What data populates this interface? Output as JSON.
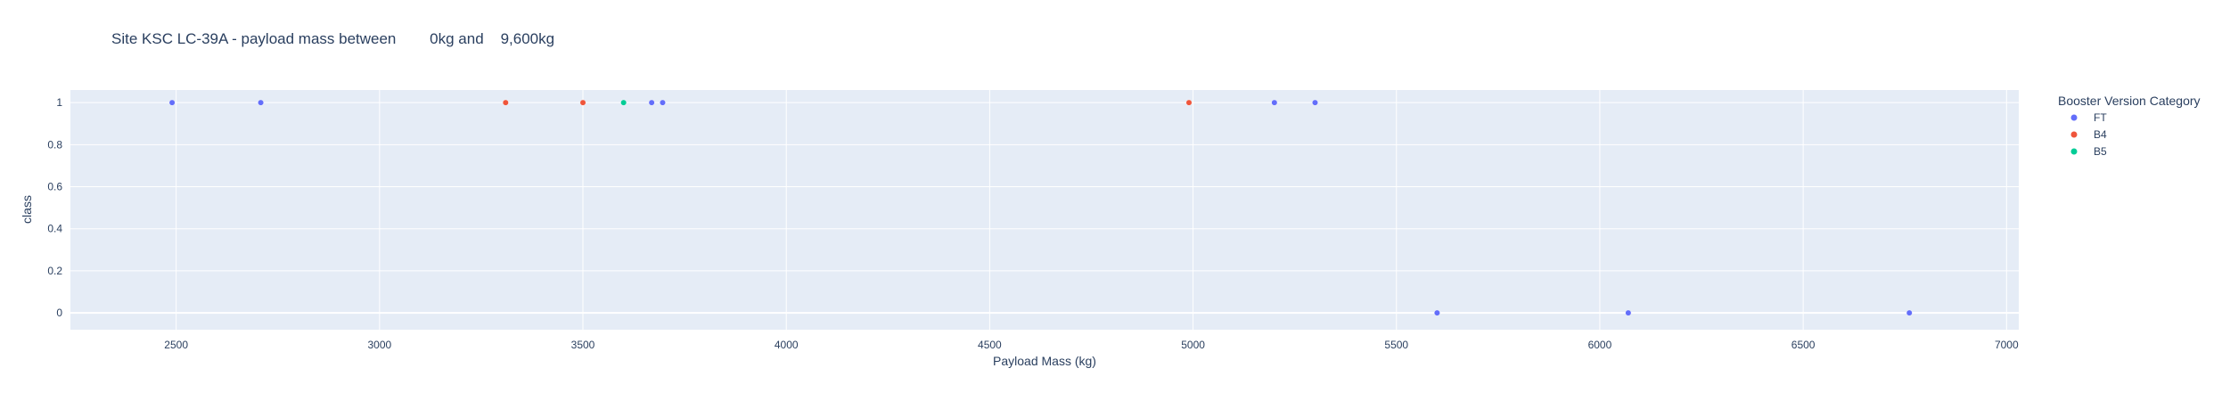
{
  "chart_data": {
    "type": "scatter",
    "title": "Site KSC LC-39A - payload mass between        0kg and    9,600kg",
    "xlabel": "Payload Mass (kg)",
    "ylabel": "class",
    "xlim": [
      2240,
      7030
    ],
    "ylim": [
      -0.08,
      1.06
    ],
    "x_ticks": [
      2500,
      3000,
      3500,
      4000,
      4500,
      5000,
      5500,
      6000,
      6500,
      7000
    ],
    "x_tick_labels": [
      "2500",
      "3000",
      "3500",
      "4000",
      "4500",
      "5000",
      "5500",
      "6000",
      "6500",
      "7000"
    ],
    "y_ticks": [
      0,
      0.2,
      0.4,
      0.6,
      0.8,
      1
    ],
    "y_tick_labels": [
      "0",
      "0.2",
      "0.4",
      "0.6",
      "0.8",
      "1"
    ],
    "grid": true,
    "legend": {
      "title": "Booster Version Category",
      "position": "right"
    },
    "series": [
      {
        "name": "FT",
        "color": "#636efa",
        "x": [
          2490,
          2708,
          3669,
          3696,
          5200,
          5300,
          5600,
          6070,
          6761
        ],
        "y": [
          1,
          1,
          1,
          1,
          1,
          1,
          0,
          0,
          0
        ]
      },
      {
        "name": "B4",
        "color": "#ef553b",
        "x": [
          3310,
          3500,
          4990
        ],
        "y": [
          1,
          1,
          1
        ]
      },
      {
        "name": "B5",
        "color": "#00cc96",
        "x": [
          3600
        ],
        "y": [
          1
        ]
      }
    ]
  },
  "colors": {
    "plot_background": "#e5ecf6",
    "gridline": "#ffffff",
    "text": "#2a3f5f"
  }
}
